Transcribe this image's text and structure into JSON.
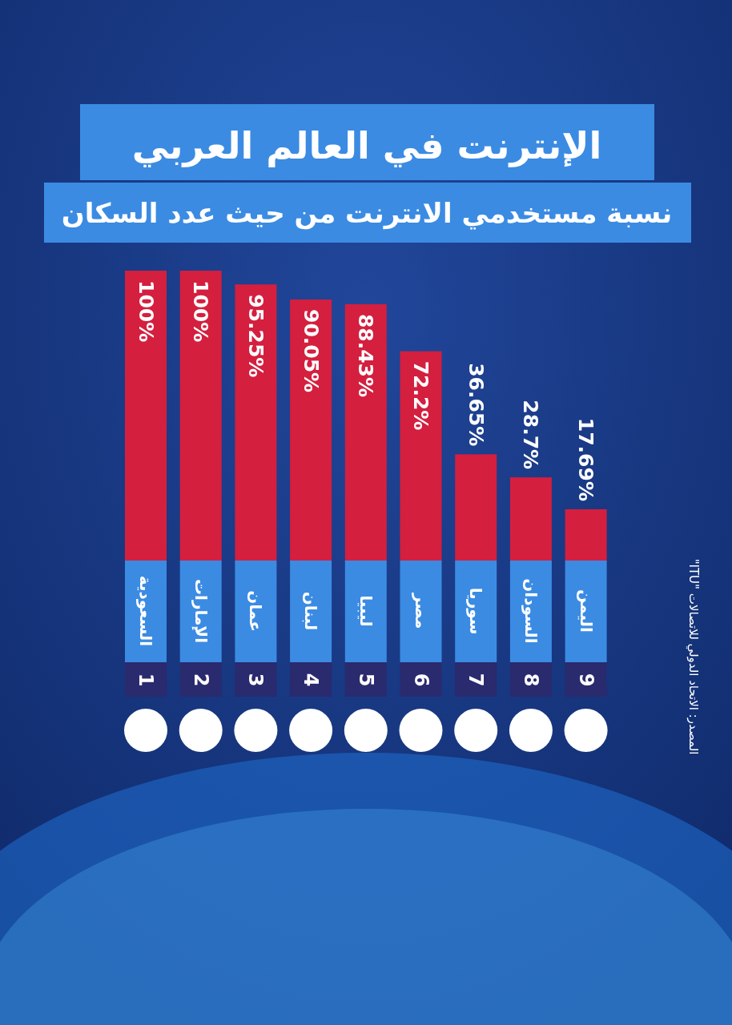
{
  "chart_data": {
    "type": "bar",
    "title": "الإنترنت في العالم العربي",
    "subtitle": "نسبة مستخدمي الانترنت من حيث عدد السكان",
    "categories": [
      "السعودية",
      "الإمارات",
      "عمان",
      "لبنان",
      "ليبيا",
      "مصر",
      "سوريا",
      "السودان",
      "اليمن"
    ],
    "values": [
      100,
      100,
      95.25,
      90.05,
      88.43,
      72.2,
      36.65,
      28.7,
      17.69
    ],
    "value_labels": [
      "100%",
      "100%",
      "95.25%",
      "90.05%",
      "88.43%",
      "72.2%",
      "36.65%",
      "28.7%",
      "17.69%"
    ],
    "color": "#d41f3f",
    "annotations": [
      "1",
      "2",
      "3",
      "4",
      "5",
      "6",
      "7",
      "8",
      "9",
      "المصدر: الاتحاد الدولي للاتصالات \"ITU\""
    ]
  }
}
